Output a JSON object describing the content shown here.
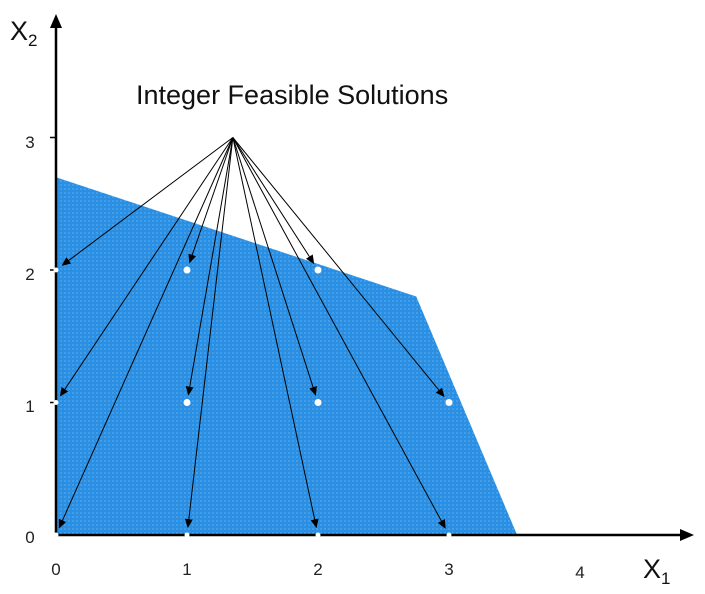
{
  "title": "Integer Feasible Solutions",
  "x_axis": {
    "letter": "X",
    "subscript": "1",
    "ticks": [
      "0",
      "1",
      "2",
      "3",
      "4"
    ]
  },
  "y_axis": {
    "letter": "X",
    "subscript": "2",
    "ticks": [
      "0",
      "1",
      "2",
      "3"
    ]
  },
  "colors": {
    "region": "#2a8fe3",
    "axis": "#000000",
    "point": "#ffffff",
    "arrow": "#000000"
  },
  "feasible_region": [
    [
      0,
      0
    ],
    [
      0,
      2.7
    ],
    [
      2.75,
      1.8
    ],
    [
      3.52,
      0
    ]
  ],
  "integer_points": [
    [
      0,
      0
    ],
    [
      1,
      0
    ],
    [
      2,
      0
    ],
    [
      3,
      0
    ],
    [
      0,
      1
    ],
    [
      1,
      1
    ],
    [
      2,
      1
    ],
    [
      3,
      1
    ],
    [
      0,
      2
    ],
    [
      1,
      2
    ],
    [
      2,
      2
    ]
  ],
  "arrow_origin": [
    1.35,
    3.0
  ]
}
